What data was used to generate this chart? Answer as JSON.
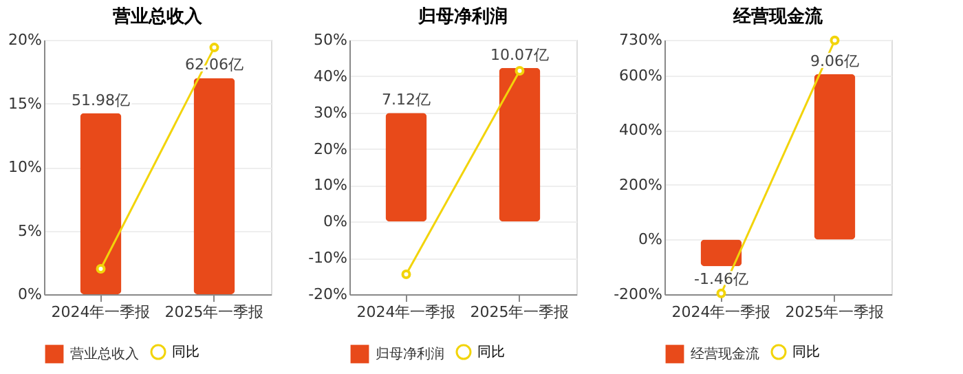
{
  "chart_data": [
    {
      "type": "bar",
      "title": "营业总收入",
      "categories": [
        "2024年一季报",
        "2025年一季报"
      ],
      "series": [
        {
          "name": "营业总收入",
          "color": "#e84a1a",
          "values": [
            51.98,
            62.06
          ],
          "value_labels": [
            "51.98亿",
            "62.06亿"
          ],
          "axis": "y2"
        },
        {
          "name": "同比",
          "type": "line",
          "color": "#f2d40a",
          "values": [
            2.0,
            19.4
          ],
          "marker": "circle"
        }
      ],
      "ylim": [
        0,
        20
      ],
      "yticks": [
        {
          "value": 0,
          "label": "0%"
        },
        {
          "value": 5,
          "label": "5%"
        },
        {
          "value": 10,
          "label": "10%"
        },
        {
          "value": 15,
          "label": "15%"
        },
        {
          "value": 20,
          "label": "20%"
        }
      ],
      "y2lim": [
        0,
        73
      ],
      "grid": "y",
      "legend": "bottom"
    },
    {
      "type": "bar",
      "title": "归母净利润",
      "categories": [
        "2024年一季报",
        "2025年一季报"
      ],
      "series": [
        {
          "name": "归母净利润",
          "color": "#e84a1a",
          "values": [
            7.12,
            10.07
          ],
          "value_labels": [
            "7.12亿",
            "10.07亿"
          ],
          "axis": "y2"
        },
        {
          "name": "同比",
          "type": "line",
          "color": "#f2d40a",
          "values": [
            -14.5,
            41.5
          ],
          "marker": "circle"
        }
      ],
      "ylim": [
        -20,
        50
      ],
      "yticks": [
        {
          "value": -20,
          "label": "-20%"
        },
        {
          "value": -10,
          "label": "-10%"
        },
        {
          "value": 0,
          "label": "0%"
        },
        {
          "value": 10,
          "label": "10%"
        },
        {
          "value": 20,
          "label": "20%"
        },
        {
          "value": 30,
          "label": "30%"
        },
        {
          "value": 40,
          "label": "40%"
        },
        {
          "value": 50,
          "label": "50%"
        }
      ],
      "y2lim": [
        -4.76,
        11.9
      ],
      "grid": "y",
      "legend": "bottom"
    },
    {
      "type": "bar",
      "title": "经营现金流",
      "categories": [
        "2024年一季报",
        "2025年一季报"
      ],
      "series": [
        {
          "name": "经营现金流",
          "color": "#e84a1a",
          "values": [
            -1.46,
            9.06
          ],
          "value_labels": [
            "-1.46亿",
            "9.06亿"
          ],
          "axis": "y2"
        },
        {
          "name": "同比",
          "type": "line",
          "color": "#f2d40a",
          "values": [
            -197,
            728
          ],
          "marker": "circle"
        }
      ],
      "ylim": [
        -200,
        730
      ],
      "yticks": [
        {
          "value": -200,
          "label": "-200%"
        },
        {
          "value": 0,
          "label": "0%"
        },
        {
          "value": 200,
          "label": "200%"
        },
        {
          "value": 400,
          "label": "400%"
        },
        {
          "value": 600,
          "label": "600%"
        },
        {
          "value": 730,
          "label": "730%"
        }
      ],
      "y2lim": [
        -2.99,
        10.93
      ],
      "grid": "y",
      "legend": "bottom"
    }
  ]
}
